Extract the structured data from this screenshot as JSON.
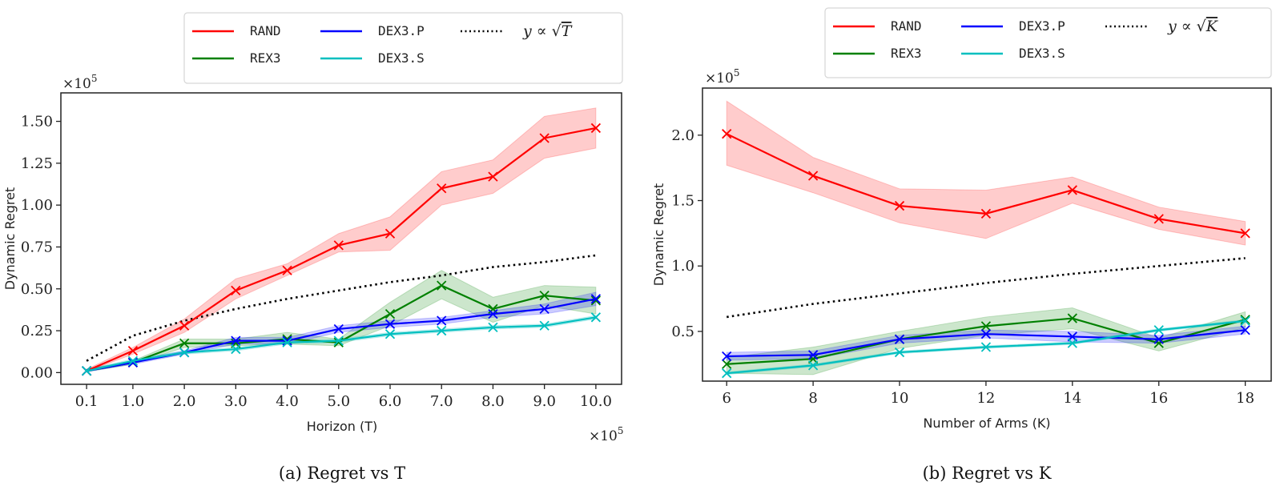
{
  "chart_data": [
    {
      "type": "line",
      "caption": "(a) Regret vs T",
      "xlabel": "Horizon (T)",
      "ylabel": "Dynamic Regret",
      "x_multiplier": "×10^5",
      "y_multiplier": "×10^5",
      "x": [
        0.1,
        1,
        2,
        3,
        4,
        5,
        6,
        7,
        8,
        9,
        10
      ],
      "x_tick_labels": [
        "0.1",
        "1.0",
        "2.0",
        "3.0",
        "4.0",
        "5.0",
        "6.0",
        "7.0",
        "8.0",
        "9.0",
        "10.0"
      ],
      "y_ticks": [
        0,
        0.25,
        0.5,
        0.75,
        1.0,
        1.25,
        1.5
      ],
      "y_tick_labels": [
        "0.00",
        "0.25",
        "0.50",
        "0.75",
        "1.00",
        "1.25",
        "1.50"
      ],
      "xlim": [
        -0.4,
        10.5
      ],
      "ylim": [
        -0.07,
        1.67
      ],
      "grid": false,
      "legend_placement": "top-right, outside",
      "series": [
        {
          "name": "RAND",
          "color": "#ff0000",
          "values": [
            0.01,
            0.13,
            0.28,
            0.49,
            0.61,
            0.76,
            0.83,
            1.1,
            1.17,
            1.4,
            1.46
          ],
          "lower": [
            0.005,
            0.11,
            0.24,
            0.44,
            0.58,
            0.72,
            0.73,
            1.0,
            1.07,
            1.28,
            1.34
          ],
          "upper": [
            0.02,
            0.15,
            0.32,
            0.56,
            0.65,
            0.83,
            0.93,
            1.2,
            1.27,
            1.53,
            1.58
          ]
        },
        {
          "name": "REX3",
          "color": "#008000",
          "values": [
            0.01,
            0.06,
            0.175,
            0.175,
            0.2,
            0.18,
            0.35,
            0.52,
            0.38,
            0.46,
            0.43
          ],
          "lower": [
            0.005,
            0.05,
            0.15,
            0.16,
            0.17,
            0.16,
            0.28,
            0.44,
            0.3,
            0.4,
            0.35
          ],
          "upper": [
            0.02,
            0.07,
            0.2,
            0.2,
            0.24,
            0.2,
            0.42,
            0.61,
            0.45,
            0.52,
            0.51
          ]
        },
        {
          "name": "DEX3.P",
          "color": "#0000ff",
          "values": [
            0.01,
            0.06,
            0.12,
            0.19,
            0.19,
            0.26,
            0.29,
            0.31,
            0.35,
            0.38,
            0.44
          ],
          "lower": [
            0.005,
            0.05,
            0.11,
            0.17,
            0.17,
            0.24,
            0.27,
            0.29,
            0.33,
            0.35,
            0.4
          ],
          "upper": [
            0.02,
            0.07,
            0.13,
            0.21,
            0.21,
            0.28,
            0.31,
            0.33,
            0.37,
            0.41,
            0.48
          ]
        },
        {
          "name": "DEX3.S",
          "color": "#00bfbf",
          "values": [
            0.01,
            0.07,
            0.12,
            0.14,
            0.18,
            0.19,
            0.23,
            0.25,
            0.27,
            0.28,
            0.33
          ],
          "lower": [
            0.005,
            0.06,
            0.11,
            0.13,
            0.17,
            0.18,
            0.22,
            0.24,
            0.26,
            0.27,
            0.32
          ],
          "upper": [
            0.02,
            0.08,
            0.13,
            0.15,
            0.19,
            0.2,
            0.24,
            0.26,
            0.28,
            0.29,
            0.34
          ]
        }
      ],
      "reference": {
        "name": "y ∝ √T",
        "color": "#000000",
        "style": "dotted",
        "values": [
          0.07,
          0.22,
          0.31,
          0.38,
          0.44,
          0.49,
          0.54,
          0.58,
          0.63,
          0.66,
          0.7
        ]
      }
    },
    {
      "type": "line",
      "caption": "(b) Regret vs K",
      "xlabel": "Number of Arms (K)",
      "ylabel": "Dynamic Regret",
      "y_multiplier": "×10^5",
      "x": [
        6,
        8,
        10,
        12,
        14,
        16,
        18
      ],
      "x_tick_labels": [
        "6",
        "8",
        "10",
        "12",
        "14",
        "16",
        "18"
      ],
      "y_ticks": [
        0.5,
        1.0,
        1.5,
        2.0
      ],
      "y_tick_labels": [
        "0.5",
        "1.0",
        "1.5",
        "2.0"
      ],
      "xlim": [
        5.44,
        18.6
      ],
      "ylim": [
        0.12,
        2.36
      ],
      "grid": false,
      "legend_placement": "top-right, outside",
      "series": [
        {
          "name": "RAND",
          "color": "#ff0000",
          "values": [
            2.01,
            1.69,
            1.46,
            1.4,
            1.58,
            1.36,
            1.25
          ],
          "lower": [
            1.77,
            1.56,
            1.33,
            1.21,
            1.48,
            1.28,
            1.16
          ],
          "upper": [
            2.26,
            1.83,
            1.59,
            1.58,
            1.68,
            1.45,
            1.34
          ]
        },
        {
          "name": "REX3",
          "color": "#008000",
          "values": [
            0.25,
            0.29,
            0.44,
            0.54,
            0.6,
            0.41,
            0.59
          ],
          "lower": [
            0.18,
            0.17,
            0.37,
            0.47,
            0.52,
            0.35,
            0.53
          ],
          "upper": [
            0.3,
            0.38,
            0.5,
            0.61,
            0.68,
            0.45,
            0.65
          ]
        },
        {
          "name": "DEX3.P",
          "color": "#0000ff",
          "values": [
            0.31,
            0.32,
            0.44,
            0.48,
            0.46,
            0.44,
            0.51
          ],
          "lower": [
            0.28,
            0.29,
            0.41,
            0.45,
            0.42,
            0.41,
            0.48
          ],
          "upper": [
            0.34,
            0.35,
            0.47,
            0.51,
            0.5,
            0.47,
            0.54
          ]
        },
        {
          "name": "DEX3.S",
          "color": "#00bfbf",
          "values": [
            0.18,
            0.24,
            0.34,
            0.38,
            0.41,
            0.51,
            0.58
          ],
          "lower": [
            0.17,
            0.23,
            0.33,
            0.37,
            0.4,
            0.5,
            0.57
          ],
          "upper": [
            0.19,
            0.25,
            0.35,
            0.39,
            0.42,
            0.52,
            0.59
          ]
        }
      ],
      "reference": {
        "name": "y ∝ √K",
        "color": "#000000",
        "style": "dotted",
        "values": [
          0.61,
          0.71,
          0.79,
          0.87,
          0.94,
          1.0,
          1.06
        ]
      }
    }
  ]
}
